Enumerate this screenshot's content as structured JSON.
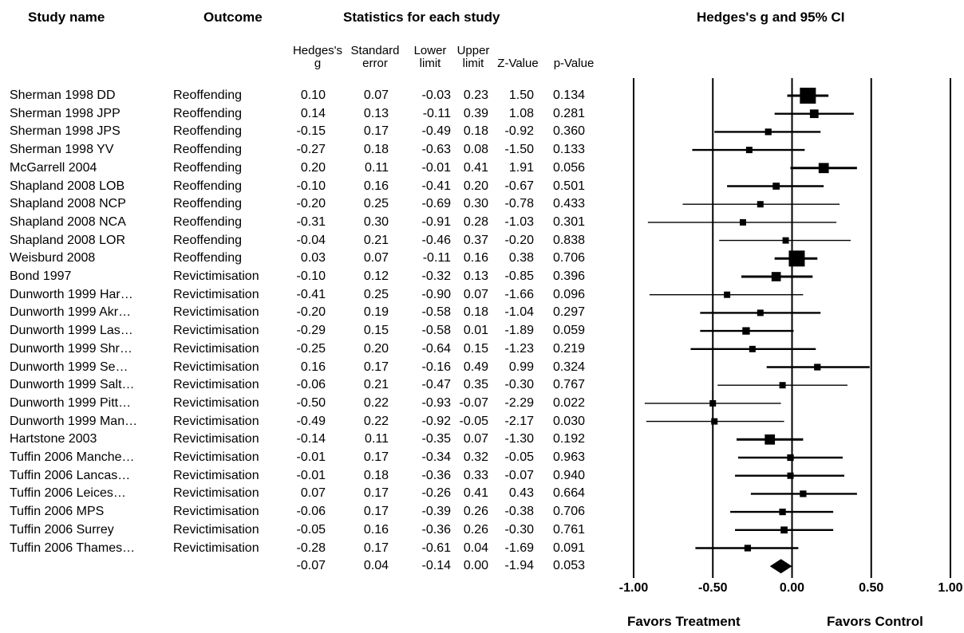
{
  "headers": {
    "study_name": "Study name",
    "outcome": "Outcome",
    "statistics": "Statistics for each study",
    "plot_title": "Hedges's g and 95% CI"
  },
  "subheaders": {
    "g": [
      "Hedges's",
      "g"
    ],
    "se": [
      "Standard",
      "error"
    ],
    "lower": [
      "Lower",
      "limit"
    ],
    "upper": [
      "Upper",
      "limit"
    ],
    "z": "Z-Value",
    "p": "p-Value"
  },
  "chart_data": {
    "type": "forest",
    "title": "Hedges's g and 95% CI",
    "x_ticks": [
      "-1.00",
      "-0.50",
      "0.00",
      "0.50",
      "1.00"
    ],
    "xlim": [
      -1.0,
      1.0
    ],
    "left_label": "Favors Treatment",
    "right_label": "Favors Control",
    "rows": [
      {
        "study": "Sherman 1998 DD",
        "outcome": "Reoffending",
        "g": 0.1,
        "se": 0.07,
        "lower": -0.03,
        "upper": 0.23,
        "z": 1.5,
        "p": 0.134,
        "g_t": "0.10",
        "se_t": "0.07",
        "lo_t": "-0.03",
        "up_t": "0.23",
        "z_t": "1.50",
        "p_t": "0.134"
      },
      {
        "study": "Sherman 1998 JPP",
        "outcome": "Reoffending",
        "g": 0.14,
        "se": 0.13,
        "lower": -0.11,
        "upper": 0.39,
        "z": 1.08,
        "p": 0.281,
        "g_t": "0.14",
        "se_t": "0.13",
        "lo_t": "-0.11",
        "up_t": "0.39",
        "z_t": "1.08",
        "p_t": "0.281"
      },
      {
        "study": "Sherman 1998 JPS",
        "outcome": "Reoffending",
        "g": -0.15,
        "se": 0.17,
        "lower": -0.49,
        "upper": 0.18,
        "z": -0.92,
        "p": 0.36,
        "g_t": "-0.15",
        "se_t": "0.17",
        "lo_t": "-0.49",
        "up_t": "0.18",
        "z_t": "-0.92",
        "p_t": "0.360"
      },
      {
        "study": "Sherman 1998 YV",
        "outcome": "Reoffending",
        "g": -0.27,
        "se": 0.18,
        "lower": -0.63,
        "upper": 0.08,
        "z": -1.5,
        "p": 0.133,
        "g_t": "-0.27",
        "se_t": "0.18",
        "lo_t": "-0.63",
        "up_t": "0.08",
        "z_t": "-1.50",
        "p_t": "0.133"
      },
      {
        "study": "McGarrell 2004",
        "outcome": "Reoffending",
        "g": 0.2,
        "se": 0.11,
        "lower": -0.01,
        "upper": 0.41,
        "z": 1.91,
        "p": 0.056,
        "g_t": "0.20",
        "se_t": "0.11",
        "lo_t": "-0.01",
        "up_t": "0.41",
        "z_t": "1.91",
        "p_t": "0.056"
      },
      {
        "study": "Shapland 2008 LOB",
        "outcome": "Reoffending",
        "g": -0.1,
        "se": 0.16,
        "lower": -0.41,
        "upper": 0.2,
        "z": -0.67,
        "p": 0.501,
        "g_t": "-0.10",
        "se_t": "0.16",
        "lo_t": "-0.41",
        "up_t": "0.20",
        "z_t": "-0.67",
        "p_t": "0.501"
      },
      {
        "study": "Shapland 2008 NCP",
        "outcome": "Reoffending",
        "g": -0.2,
        "se": 0.25,
        "lower": -0.69,
        "upper": 0.3,
        "z": -0.78,
        "p": 0.433,
        "g_t": "-0.20",
        "se_t": "0.25",
        "lo_t": "-0.69",
        "up_t": "0.30",
        "z_t": "-0.78",
        "p_t": "0.433"
      },
      {
        "study": "Shapland 2008 NCA",
        "outcome": "Reoffending",
        "g": -0.31,
        "se": 0.3,
        "lower": -0.91,
        "upper": 0.28,
        "z": -1.03,
        "p": 0.301,
        "g_t": "-0.31",
        "se_t": "0.30",
        "lo_t": "-0.91",
        "up_t": "0.28",
        "z_t": "-1.03",
        "p_t": "0.301"
      },
      {
        "study": "Shapland 2008 LOR",
        "outcome": "Reoffending",
        "g": -0.04,
        "se": 0.21,
        "lower": -0.46,
        "upper": 0.37,
        "z": -0.2,
        "p": 0.838,
        "g_t": "-0.04",
        "se_t": "0.21",
        "lo_t": "-0.46",
        "up_t": "0.37",
        "z_t": "-0.20",
        "p_t": "0.838"
      },
      {
        "study": "Weisburd 2008",
        "outcome": "Reoffending",
        "g": 0.03,
        "se": 0.07,
        "lower": -0.11,
        "upper": 0.16,
        "z": 0.38,
        "p": 0.706,
        "g_t": "0.03",
        "se_t": "0.07",
        "lo_t": "-0.11",
        "up_t": "0.16",
        "z_t": "0.38",
        "p_t": "0.706"
      },
      {
        "study": "Bond 1997",
        "outcome": "Revictimisation",
        "g": -0.1,
        "se": 0.12,
        "lower": -0.32,
        "upper": 0.13,
        "z": -0.85,
        "p": 0.396,
        "g_t": "-0.10",
        "se_t": "0.12",
        "lo_t": "-0.32",
        "up_t": "0.13",
        "z_t": "-0.85",
        "p_t": "0.396"
      },
      {
        "study": "Dunworth 1999 Har…",
        "outcome": "Revictimisation",
        "g": -0.41,
        "se": 0.25,
        "lower": -0.9,
        "upper": 0.07,
        "z": -1.66,
        "p": 0.096,
        "g_t": "-0.41",
        "se_t": "0.25",
        "lo_t": "-0.90",
        "up_t": "0.07",
        "z_t": "-1.66",
        "p_t": "0.096"
      },
      {
        "study": "Dunworth 1999 Akr…",
        "outcome": "Revictimisation",
        "g": -0.2,
        "se": 0.19,
        "lower": -0.58,
        "upper": 0.18,
        "z": -1.04,
        "p": 0.297,
        "g_t": "-0.20",
        "se_t": "0.19",
        "lo_t": "-0.58",
        "up_t": "0.18",
        "z_t": "-1.04",
        "p_t": "0.297"
      },
      {
        "study": "Dunworth 1999 Las…",
        "outcome": "Revictimisation",
        "g": -0.29,
        "se": 0.15,
        "lower": -0.58,
        "upper": 0.01,
        "z": -1.89,
        "p": 0.059,
        "g_t": "-0.29",
        "se_t": "0.15",
        "lo_t": "-0.58",
        "up_t": "0.01",
        "z_t": "-1.89",
        "p_t": "0.059"
      },
      {
        "study": "Dunworth 1999 Shr…",
        "outcome": "Revictimisation",
        "g": -0.25,
        "se": 0.2,
        "lower": -0.64,
        "upper": 0.15,
        "z": -1.23,
        "p": 0.219,
        "g_t": "-0.25",
        "se_t": "0.20",
        "lo_t": "-0.64",
        "up_t": "0.15",
        "z_t": "-1.23",
        "p_t": "0.219"
      },
      {
        "study": "Dunworth 1999 Se…",
        "outcome": "Revictimisation",
        "g": 0.16,
        "se": 0.17,
        "lower": -0.16,
        "upper": 0.49,
        "z": 0.99,
        "p": 0.324,
        "g_t": "0.16",
        "se_t": "0.17",
        "lo_t": "-0.16",
        "up_t": "0.49",
        "z_t": "0.99",
        "p_t": "0.324"
      },
      {
        "study": "Dunworth 1999 Salt…",
        "outcome": "Revictimisation",
        "g": -0.06,
        "se": 0.21,
        "lower": -0.47,
        "upper": 0.35,
        "z": -0.3,
        "p": 0.767,
        "g_t": "-0.06",
        "se_t": "0.21",
        "lo_t": "-0.47",
        "up_t": "0.35",
        "z_t": "-0.30",
        "p_t": "0.767"
      },
      {
        "study": "Dunworth 1999 Pitt…",
        "outcome": "Revictimisation",
        "g": -0.5,
        "se": 0.22,
        "lower": -0.93,
        "upper": -0.07,
        "z": -2.29,
        "p": 0.022,
        "g_t": "-0.50",
        "se_t": "0.22",
        "lo_t": "-0.93",
        "up_t": "-0.07",
        "z_t": "-2.29",
        "p_t": "0.022"
      },
      {
        "study": "Dunworth 1999 Man…",
        "outcome": "Revictimisation",
        "g": -0.49,
        "se": 0.22,
        "lower": -0.92,
        "upper": -0.05,
        "z": -2.17,
        "p": 0.03,
        "g_t": "-0.49",
        "se_t": "0.22",
        "lo_t": "-0.92",
        "up_t": "-0.05",
        "z_t": "-2.17",
        "p_t": "0.030"
      },
      {
        "study": "Hartstone 2003",
        "outcome": "Revictimisation",
        "g": -0.14,
        "se": 0.11,
        "lower": -0.35,
        "upper": 0.07,
        "z": -1.3,
        "p": 0.192,
        "g_t": "-0.14",
        "se_t": "0.11",
        "lo_t": "-0.35",
        "up_t": "0.07",
        "z_t": "-1.30",
        "p_t": "0.192"
      },
      {
        "study": "Tuffin 2006 Manche…",
        "outcome": "Revictimisation",
        "g": -0.01,
        "se": 0.17,
        "lower": -0.34,
        "upper": 0.32,
        "z": -0.05,
        "p": 0.963,
        "g_t": "-0.01",
        "se_t": "0.17",
        "lo_t": "-0.34",
        "up_t": "0.32",
        "z_t": "-0.05",
        "p_t": "0.963"
      },
      {
        "study": "Tuffin 2006 Lancas…",
        "outcome": "Revictimisation",
        "g": -0.01,
        "se": 0.18,
        "lower": -0.36,
        "upper": 0.33,
        "z": -0.07,
        "p": 0.94,
        "g_t": "-0.01",
        "se_t": "0.18",
        "lo_t": "-0.36",
        "up_t": "0.33",
        "z_t": "-0.07",
        "p_t": "0.940"
      },
      {
        "study": "Tuffin 2006 Leices…",
        "outcome": "Revictimisation",
        "g": 0.07,
        "se": 0.17,
        "lower": -0.26,
        "upper": 0.41,
        "z": 0.43,
        "p": 0.664,
        "g_t": "0.07",
        "se_t": "0.17",
        "lo_t": "-0.26",
        "up_t": "0.41",
        "z_t": "0.43",
        "p_t": "0.664"
      },
      {
        "study": "Tuffin 2006 MPS",
        "outcome": "Revictimisation",
        "g": -0.06,
        "se": 0.17,
        "lower": -0.39,
        "upper": 0.26,
        "z": -0.38,
        "p": 0.706,
        "g_t": "-0.06",
        "se_t": "0.17",
        "lo_t": "-0.39",
        "up_t": "0.26",
        "z_t": "-0.38",
        "p_t": "0.706"
      },
      {
        "study": "Tuffin 2006 Surrey",
        "outcome": "Revictimisation",
        "g": -0.05,
        "se": 0.16,
        "lower": -0.36,
        "upper": 0.26,
        "z": -0.3,
        "p": 0.761,
        "g_t": "-0.05",
        "se_t": "0.16",
        "lo_t": "-0.36",
        "up_t": "0.26",
        "z_t": "-0.30",
        "p_t": "0.761"
      },
      {
        "study": "Tuffin 2006 Thames…",
        "outcome": "Revictimisation",
        "g": -0.28,
        "se": 0.17,
        "lower": -0.61,
        "upper": 0.04,
        "z": -1.69,
        "p": 0.091,
        "g_t": "-0.28",
        "se_t": "0.17",
        "lo_t": "-0.61",
        "up_t": "0.04",
        "z_t": "-1.69",
        "p_t": "0.091"
      }
    ],
    "summary": {
      "g": -0.07,
      "se": 0.04,
      "lower": -0.14,
      "upper": 0.0,
      "z": -1.94,
      "p": 0.053,
      "g_t": "-0.07",
      "se_t": "0.04",
      "lo_t": "-0.14",
      "up_t": "0.00",
      "z_t": "-1.94",
      "p_t": "0.053"
    }
  }
}
